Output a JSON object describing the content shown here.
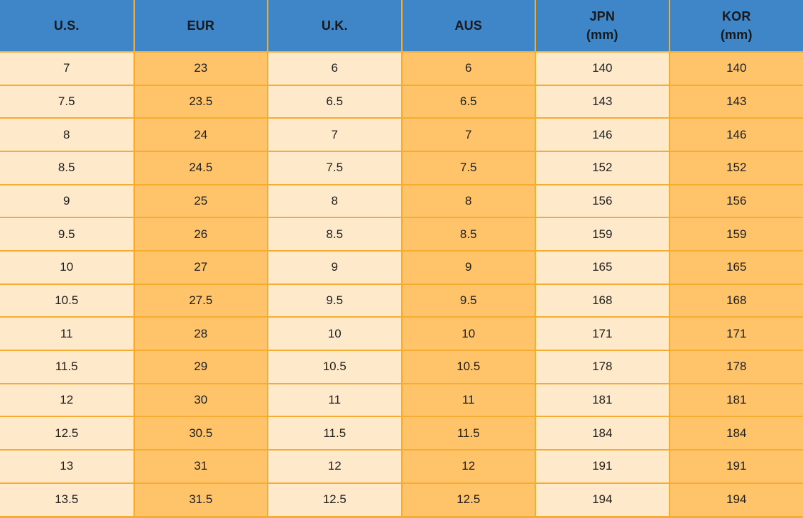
{
  "table": {
    "columns": [
      {
        "key": "us",
        "label": "U.S.",
        "sub": ""
      },
      {
        "key": "eur",
        "label": "EUR",
        "sub": ""
      },
      {
        "key": "uk",
        "label": "U.K.",
        "sub": ""
      },
      {
        "key": "aus",
        "label": "AUS",
        "sub": ""
      },
      {
        "key": "jpn",
        "label": "JPN",
        "sub": "(mm)"
      },
      {
        "key": "kor",
        "label": "KOR",
        "sub": "(mm)"
      }
    ],
    "rows": [
      [
        "7",
        "23",
        "6",
        "6",
        "140",
        "140"
      ],
      [
        "7.5",
        "23.5",
        "6.5",
        "6.5",
        "143",
        "143"
      ],
      [
        "8",
        "24",
        "7",
        "7",
        "146",
        "146"
      ],
      [
        "8.5",
        "24.5",
        "7.5",
        "7.5",
        "152",
        "152"
      ],
      [
        "9",
        "25",
        "8",
        "8",
        "156",
        "156"
      ],
      [
        "9.5",
        "26",
        "8.5",
        "8.5",
        "159",
        "159"
      ],
      [
        "10",
        "27",
        "9",
        "9",
        "165",
        "165"
      ],
      [
        "10.5",
        "27.5",
        "9.5",
        "9.5",
        "168",
        "168"
      ],
      [
        "11",
        "28",
        "10",
        "10",
        "171",
        "171"
      ],
      [
        "11.5",
        "29",
        "10.5",
        "10.5",
        "178",
        "178"
      ],
      [
        "12",
        "30",
        "11",
        "11",
        "181",
        "181"
      ],
      [
        "12.5",
        "30.5",
        "11.5",
        "11.5",
        "184",
        "184"
      ],
      [
        "13",
        "31",
        "12",
        "12",
        "191",
        "191"
      ],
      [
        "13.5",
        "31.5",
        "12.5",
        "12.5",
        "194",
        "194"
      ]
    ]
  },
  "colors": {
    "header_bg": "#3E86C7",
    "header_text": "#16191D",
    "cell_cream": "#FEE9CB",
    "cell_orange": "#FFC369",
    "border": "#F5AC30",
    "body_text": "#1E1E1E"
  }
}
